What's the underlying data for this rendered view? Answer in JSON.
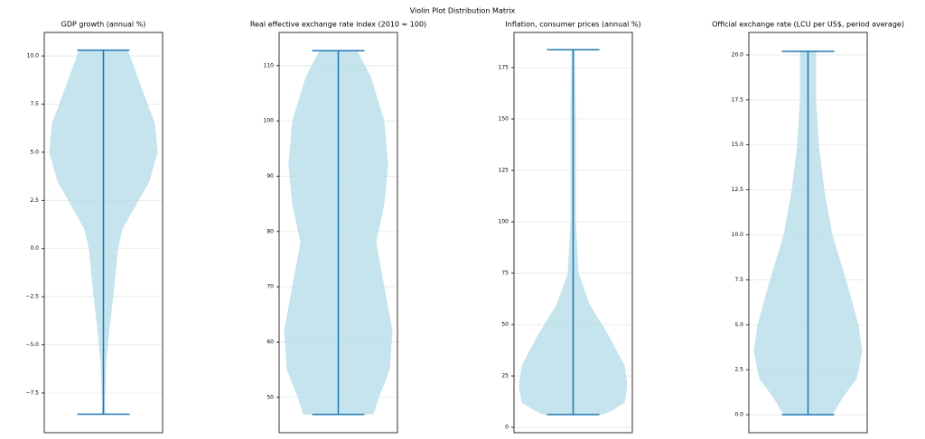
{
  "title": "Violin Plot Distribution Matrix",
  "chart_data": [
    {
      "type": "violin",
      "title": "GDP growth (annual %)",
      "ylim": [
        -9.56,
        11.22
      ],
      "yticks": [
        {
          "value": 10,
          "label": "10.0"
        },
        {
          "value": 7.5,
          "label": "7.5"
        },
        {
          "value": 5,
          "label": "5.0"
        },
        {
          "value": 2.5,
          "label": "2.5"
        },
        {
          "value": 0,
          "label": "0.0"
        },
        {
          "value": -2.5,
          "label": "−2.5"
        },
        {
          "value": -5,
          "label": "−5.0"
        },
        {
          "value": -7.5,
          "label": "−7.5"
        }
      ],
      "grid": true,
      "color": "#add8e6",
      "line_color": "#1f77b4",
      "min": -8.6,
      "max": 10.3,
      "levels": [
        10.3,
        8,
        6.5,
        5,
        3.5,
        2,
        1,
        0,
        -2,
        -4,
        -6,
        -8,
        -8.6
      ],
      "density": [
        0.45,
        0.75,
        0.95,
        1.0,
        0.85,
        0.55,
        0.35,
        0.27,
        0.2,
        0.12,
        0.05,
        0.03,
        0.03
      ]
    },
    {
      "type": "violin",
      "title": "Real effective exchange rate index (2010 = 100)",
      "ylim": [
        43.6,
        116.0
      ],
      "yticks": [
        50,
        60,
        70,
        80,
        90,
        100,
        110
      ],
      "grid": true,
      "color": "#add8e6",
      "line_color": "#1f77b4",
      "min": 46.9,
      "max": 112.7,
      "levels": [
        112.7,
        108,
        100,
        92,
        85,
        78,
        70,
        62,
        55,
        50,
        46.9
      ],
      "density": [
        0.35,
        0.6,
        0.85,
        0.92,
        0.85,
        0.7,
        0.85,
        1.0,
        0.95,
        0.75,
        0.65
      ]
    },
    {
      "type": "violin",
      "title": "Inflation, consumer prices (annual %)",
      "ylim": [
        -2.6,
        192.1
      ],
      "yticks": [
        0,
        25,
        50,
        75,
        100,
        125,
        150,
        175
      ],
      "grid": true,
      "color": "#add8e6",
      "line_color": "#1f77b4",
      "min": 6.2,
      "max": 183.7,
      "levels": [
        183.7,
        150,
        100,
        75,
        60,
        45,
        30,
        20,
        12,
        8,
        6.2
      ],
      "density": [
        0.03,
        0.05,
        0.05,
        0.1,
        0.3,
        0.65,
        0.95,
        1.0,
        0.95,
        0.7,
        0.55
      ]
    },
    {
      "type": "violin",
      "title": "Official exchange rate (LCU per US$, period average)",
      "ylim": [
        -1.0,
        21.25
      ],
      "yticks": [
        {
          "value": 0,
          "label": "0.0"
        },
        {
          "value": 2.5,
          "label": "2.5"
        },
        {
          "value": 5,
          "label": "5.0"
        },
        {
          "value": 7.5,
          "label": "7.5"
        },
        {
          "value": 10,
          "label": "10.0"
        },
        {
          "value": 12.5,
          "label": "12.5"
        },
        {
          "value": 15,
          "label": "15.0"
        },
        {
          "value": 17.5,
          "label": "17.5"
        },
        {
          "value": 20,
          "label": "20.0"
        }
      ],
      "grid": true,
      "color": "#add8e6",
      "line_color": "#1f77b4",
      "min": 0.0,
      "max": 20.2,
      "levels": [
        20.2,
        17.5,
        15,
        12.5,
        10,
        7.5,
        5,
        3.5,
        2,
        1,
        0
      ],
      "density": [
        0.15,
        0.15,
        0.2,
        0.3,
        0.45,
        0.7,
        0.93,
        1.0,
        0.9,
        0.65,
        0.45
      ]
    }
  ]
}
